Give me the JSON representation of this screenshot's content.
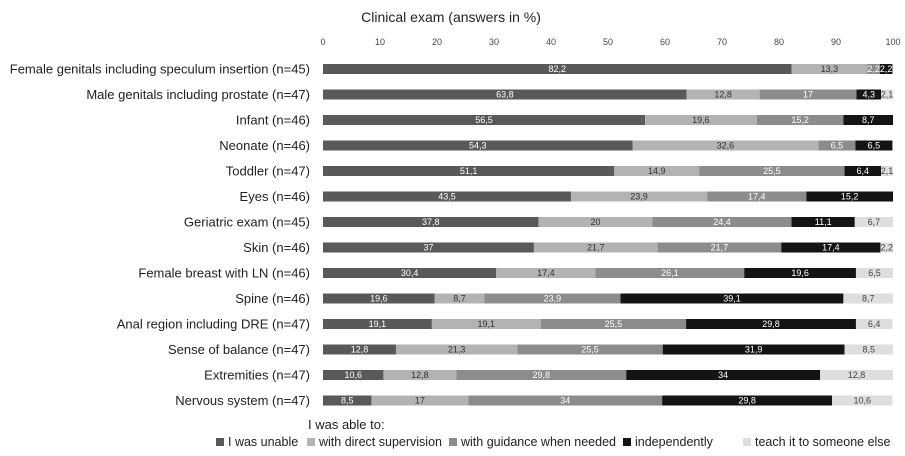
{
  "chart_data": {
    "type": "bar",
    "orientation": "horizontal",
    "stacked": true,
    "title": "Clinical exam (answers in %)",
    "xlim": [
      0,
      100
    ],
    "xticks": [
      0,
      10,
      20,
      30,
      40,
      50,
      60,
      70,
      80,
      90,
      100
    ],
    "xaxis_position": "top",
    "legend_title": "I was able to:",
    "legend_position": "bottom",
    "categories": [
      "Female genitals including speculum insertion (n=45)",
      "Male genitals including prostate (n=47)",
      "Infant (n=46)",
      "Neonate (n=46)",
      "Toddler (n=47)",
      "Eyes (n=46)",
      "Geriatric exam (n=45)",
      "Skin (n=46)",
      "Female breast with LN (n=46)",
      "Spine (n=46)",
      "Anal region including DRE (n=47)",
      "Sense of balance (n=47)",
      "Extremities (n=47)",
      "Nervous system (n=47)"
    ],
    "series": [
      {
        "name": "I was unable",
        "color": "#595959",
        "label_color": "#ffffff",
        "values": [
          82.2,
          63.8,
          56.5,
          54.3,
          51.1,
          43.5,
          37.8,
          37,
          30.4,
          19.6,
          19.1,
          12.8,
          10.6,
          8.5
        ],
        "labels": [
          "82,2",
          "63,8",
          "56,5",
          "54,3",
          "51,1",
          "43,5",
          "37,8",
          "37",
          "30,4",
          "19,6",
          "19,1",
          "12,8",
          "10,6",
          "8,5"
        ]
      },
      {
        "name": "with direct supervision",
        "color": "#b3b3b3",
        "label_color": "#333333",
        "values": [
          13.3,
          12.8,
          19.6,
          32.6,
          14.9,
          23.9,
          20,
          21.7,
          17.4,
          8.7,
          19.1,
          21.3,
          12.8,
          17
        ],
        "labels": [
          "13,3",
          "12,8",
          "19,6",
          "32,6",
          "14,9",
          "23,9",
          "20",
          "21,7",
          "17,4",
          "8,7",
          "19,1",
          "21,3",
          "12,8",
          "17"
        ]
      },
      {
        "name": "with guidance when needed",
        "color": "#8c8c8c",
        "label_color": "#ffffff",
        "values": [
          2.2,
          17,
          15.2,
          6.5,
          25.5,
          17.4,
          24.4,
          21.7,
          26.1,
          23.9,
          25.5,
          25.5,
          29.8,
          34
        ],
        "labels": [
          "2,2",
          "17",
          "15,2",
          "6,5",
          "25,5",
          "17,4",
          "24,4",
          "21,7",
          "26,1",
          "23,9",
          "25,5",
          "25,5",
          "29,8",
          "34"
        ]
      },
      {
        "name": "independently",
        "color": "#141414",
        "label_color": "#ffffff",
        "values": [
          2.2,
          4.3,
          8.7,
          6.5,
          6.4,
          15.2,
          11.1,
          17.4,
          19.6,
          39.1,
          29.8,
          31.9,
          34,
          29.8
        ],
        "labels": [
          "2,2",
          "4,3",
          "8,7",
          "6,5",
          "6,4",
          "15,2",
          "11,1",
          "17,4",
          "19,6",
          "39,1",
          "29,8",
          "31,9",
          "34",
          "29,8"
        ]
      },
      {
        "name": "teach it to someone else",
        "color": "#dedede",
        "label_color": "#444444",
        "values": [
          0,
          2.1,
          0,
          0,
          2.1,
          0,
          6.7,
          2.2,
          6.5,
          8.7,
          6.4,
          8.5,
          12.8,
          10.6
        ],
        "labels": [
          "",
          "2,1",
          "",
          "",
          "2,1",
          "",
          "6,7",
          "2,2",
          "6,5",
          "8,7",
          "6,4",
          "8,5",
          "12,8",
          "10,6"
        ]
      }
    ]
  }
}
